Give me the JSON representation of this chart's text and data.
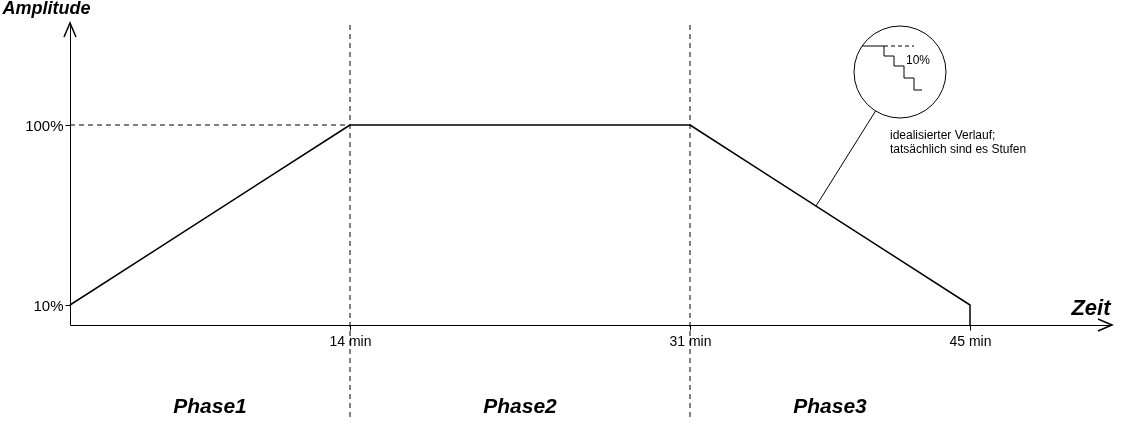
{
  "chart_data": {
    "type": "line",
    "xlabel": "Zeit",
    "ylabel": "Amplitude",
    "x": [
      0,
      14,
      31,
      45,
      45
    ],
    "series": [
      {
        "color": "#000000",
        "values": [
          10,
          100,
          100,
          10,
          0
        ]
      }
    ],
    "xlim": [
      0,
      52
    ],
    "ylim": [
      0,
      150
    ],
    "xticks": [
      {
        "value": 14,
        "label": "14 min"
      },
      {
        "value": 31,
        "label": "31 min"
      },
      {
        "value": 45,
        "label": "45 min"
      }
    ],
    "yticks": [
      {
        "value": 10,
        "label": "10%"
      },
      {
        "value": 100,
        "label": "100%"
      }
    ],
    "ref_lines": [
      {
        "axis": "y",
        "value": 100,
        "line_style": "dashed"
      },
      {
        "axis": "x",
        "value": 14,
        "line_style": "dashed"
      },
      {
        "axis": "x",
        "value": 31,
        "line_style": "dashed"
      }
    ],
    "annotations": [
      "Phase1",
      "Phase2",
      "Phase3",
      "10%",
      "idealisierter Verlauf; tatsächlich sind es Stufen"
    ],
    "grid": false,
    "marker": "none",
    "line_style": "solid"
  }
}
